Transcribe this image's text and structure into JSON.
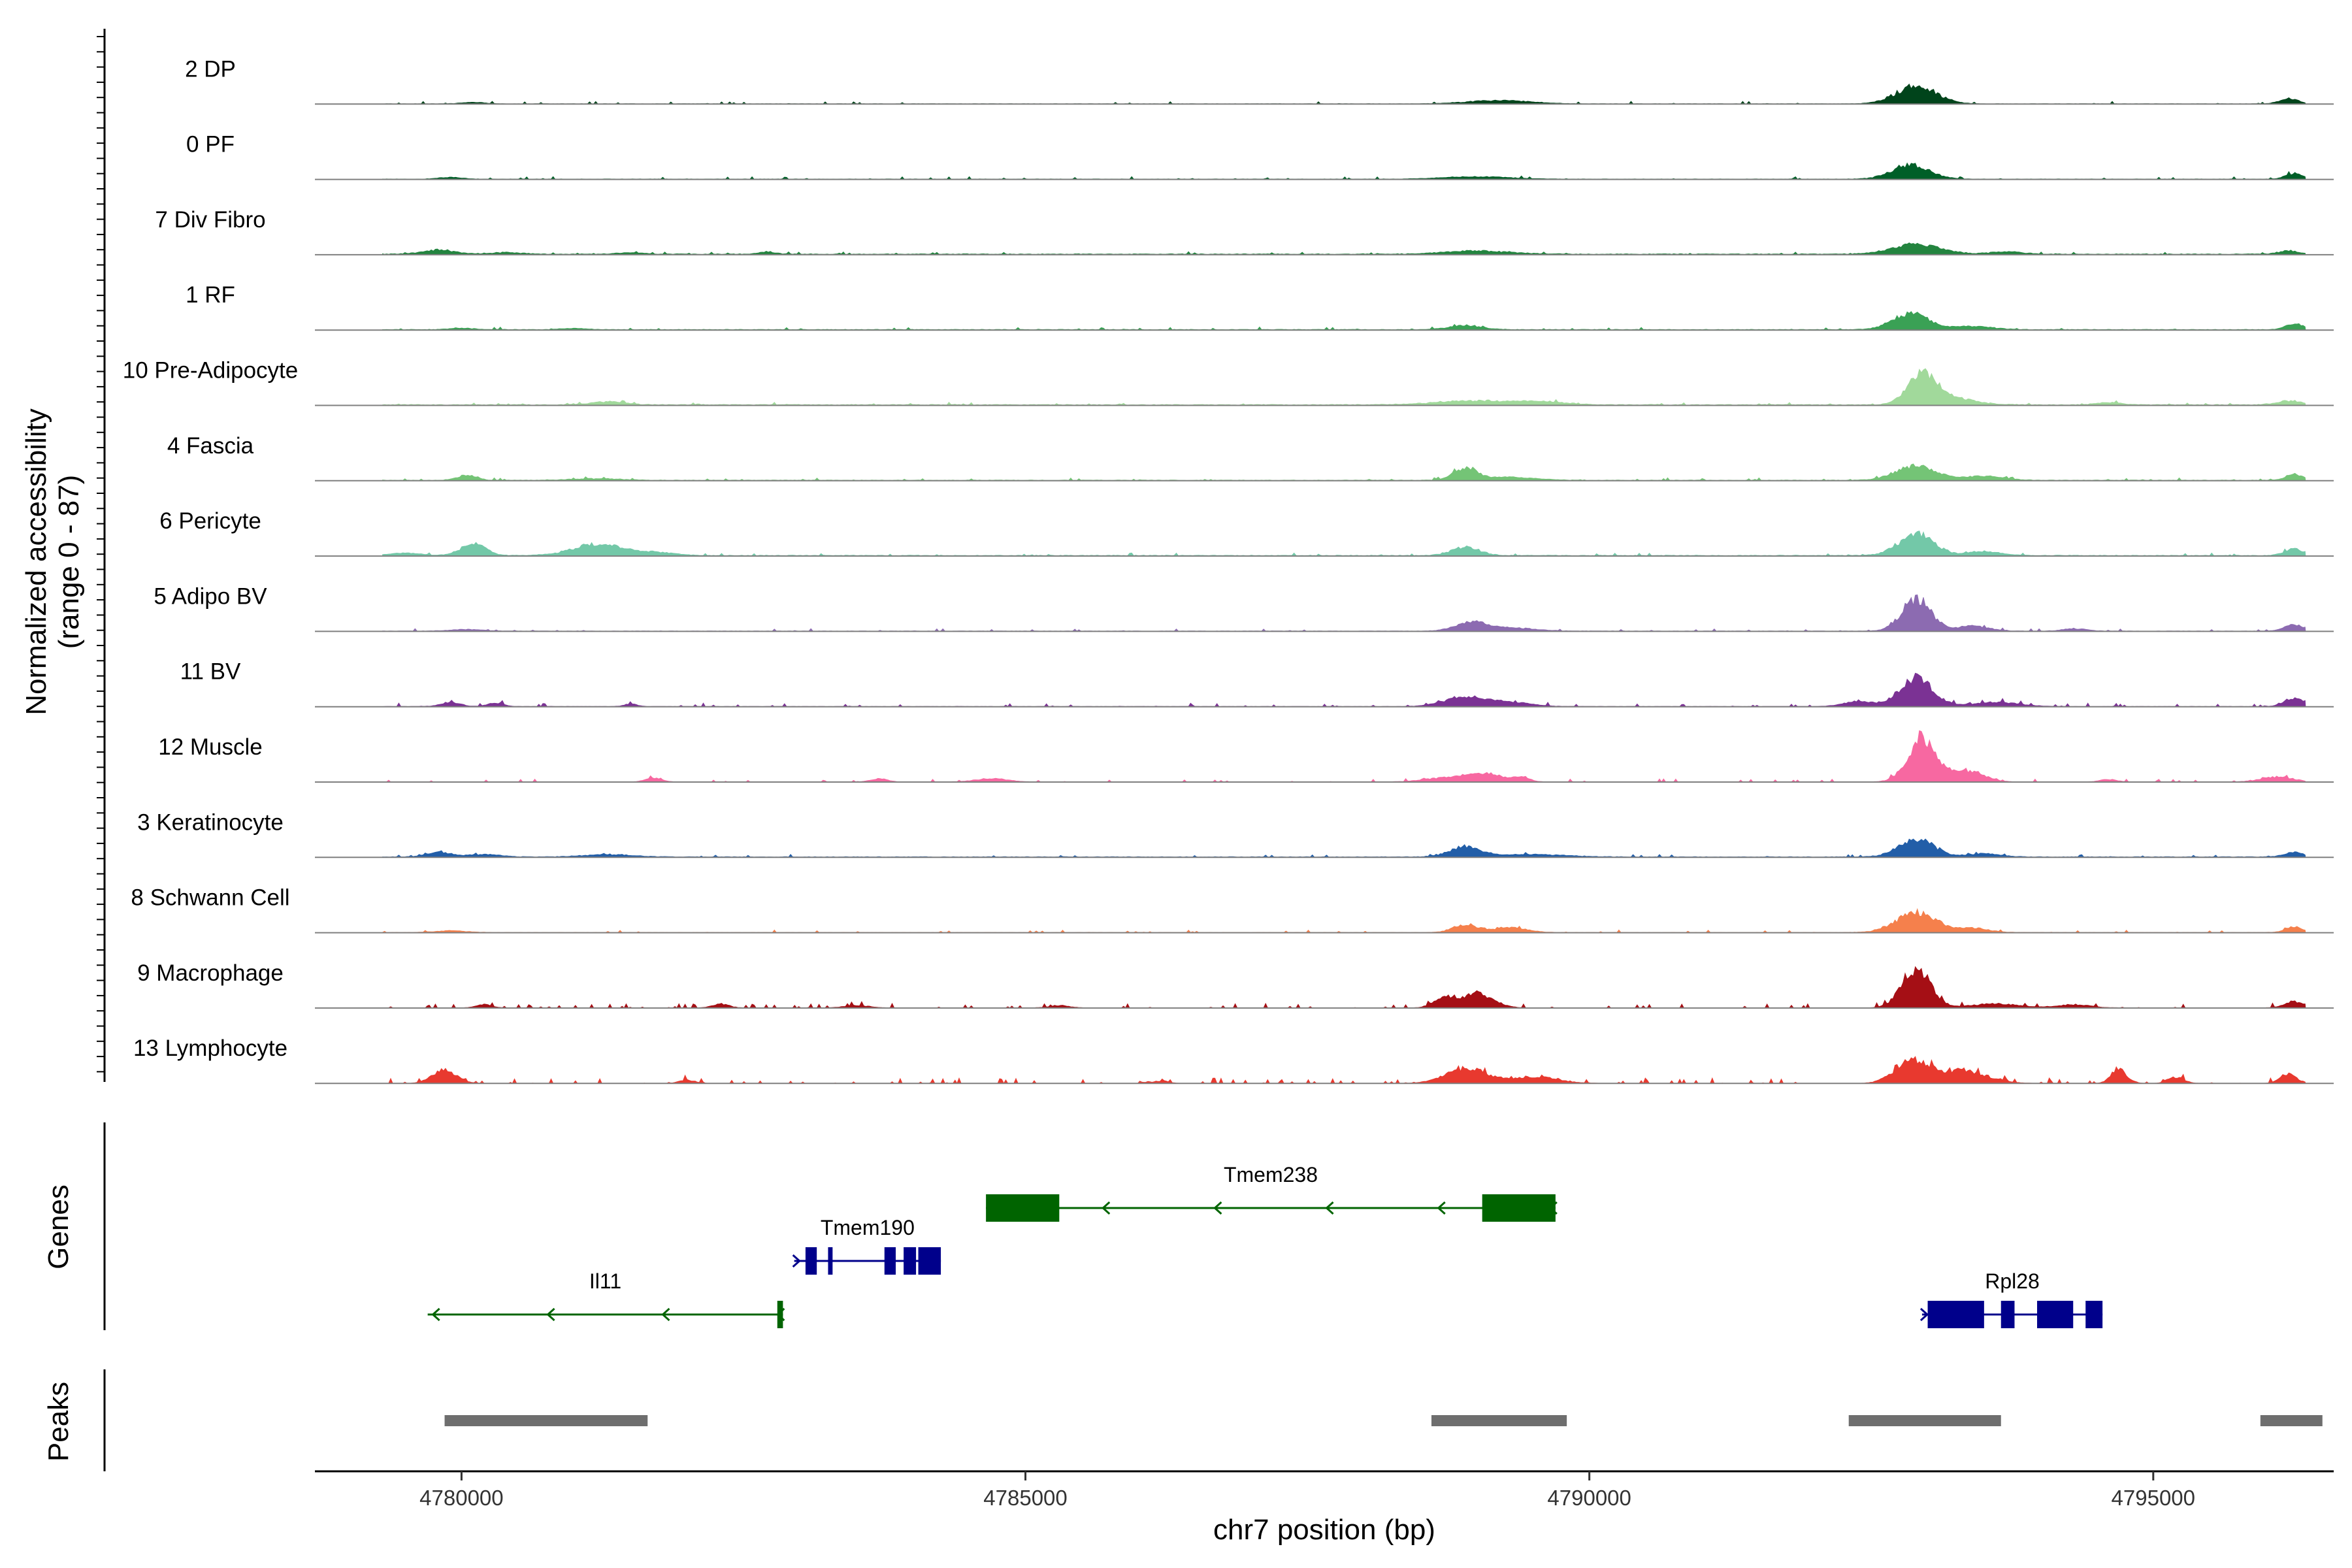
{
  "chart_data": {
    "type": "area",
    "chart_kind": "coverage-track-plot",
    "ylabel": "Normalized accessibility",
    "ylabel_range": "(range 0 - 87)",
    "yrange": [
      0,
      87
    ],
    "xlabel": "chr7 position (bp)",
    "xlim": [
      4778700,
      4796600
    ],
    "x_ticks": [
      {
        "value": 4780000,
        "label": "4780000"
      },
      {
        "value": 4785000,
        "label": "4785000"
      },
      {
        "value": 4790000,
        "label": "4790000"
      },
      {
        "value": 4795000,
        "label": "4795000"
      }
    ],
    "tracks": [
      {
        "name": "2 DP",
        "color": "#00441b",
        "base": 0.3,
        "noise": 1,
        "peaks": [
          [
            4780100,
            150,
            1.8
          ],
          [
            4789200,
            400,
            4
          ],
          [
            4792900,
            250,
            22
          ],
          [
            4796200,
            110,
            7
          ]
        ]
      },
      {
        "name": "0 PF",
        "color": "#005f28",
        "base": 0.4,
        "noise": 1,
        "peaks": [
          [
            4779900,
            150,
            2
          ],
          [
            4789000,
            400,
            3
          ],
          [
            4792850,
            230,
            18
          ],
          [
            4796250,
            110,
            7
          ]
        ]
      },
      {
        "name": "7 Div Fibro",
        "color": "#23843f",
        "base": 0.8,
        "noise": 1,
        "peaks": [
          [
            4779800,
            200,
            5
          ],
          [
            4780400,
            200,
            2
          ],
          [
            4781500,
            150,
            2
          ],
          [
            4782700,
            100,
            3
          ],
          [
            4789000,
            400,
            4
          ],
          [
            4792900,
            300,
            12
          ],
          [
            4793700,
            200,
            3
          ],
          [
            4796200,
            120,
            4
          ]
        ]
      },
      {
        "name": "1 RF",
        "color": "#3aa155",
        "base": 0.6,
        "noise": 1,
        "peaks": [
          [
            4780000,
            150,
            1.8
          ],
          [
            4781000,
            150,
            1.5
          ],
          [
            4788900,
            200,
            5
          ],
          [
            4792850,
            220,
            20
          ],
          [
            4793400,
            250,
            4
          ],
          [
            4796250,
            110,
            7
          ]
        ]
      },
      {
        "name": "10 Pre-Adipocyte",
        "color": "#a1d99b",
        "base": 0.8,
        "noise": 1,
        "peaks": [
          [
            4781300,
            200,
            4
          ],
          [
            4789000,
            500,
            5
          ],
          [
            4789600,
            300,
            3
          ],
          [
            4792950,
            180,
            35
          ],
          [
            4793200,
            300,
            8
          ],
          [
            4794600,
            150,
            3
          ],
          [
            4796200,
            150,
            5
          ]
        ]
      },
      {
        "name": "4 Fascia",
        "color": "#74c476",
        "base": 0.6,
        "noise": 1,
        "peaks": [
          [
            4780050,
            120,
            6
          ],
          [
            4781200,
            300,
            2
          ],
          [
            4788900,
            150,
            14
          ],
          [
            4789300,
            300,
            4
          ],
          [
            4792900,
            250,
            18
          ],
          [
            4793500,
            250,
            5
          ],
          [
            4796250,
            110,
            7
          ]
        ]
      },
      {
        "name": "6 Pericyte",
        "color": "#73c8a8",
        "base": 0.7,
        "noise": 1,
        "peaks": [
          [
            4780100,
            150,
            15
          ],
          [
            4779500,
            200,
            3
          ],
          [
            4781200,
            300,
            14
          ],
          [
            4781700,
            250,
            4
          ],
          [
            4788900,
            180,
            10
          ],
          [
            4792900,
            220,
            26
          ],
          [
            4793500,
            200,
            5
          ],
          [
            4796250,
            120,
            8
          ]
        ]
      },
      {
        "name": "5 Adipo BV",
        "color": "#8c6bb1",
        "base": 0.4,
        "noise": 1,
        "peaks": [
          [
            4780050,
            200,
            2
          ],
          [
            4788950,
            200,
            10
          ],
          [
            4789300,
            300,
            4
          ],
          [
            4792900,
            180,
            40
          ],
          [
            4793400,
            200,
            6
          ],
          [
            4794300,
            150,
            3
          ],
          [
            4796250,
            120,
            8
          ]
        ]
      },
      {
        "name": "11 BV",
        "color": "#7b3294",
        "base": 0.3,
        "noise": 1.4,
        "peaks": [
          [
            4779900,
            120,
            5
          ],
          [
            4780300,
            100,
            4
          ],
          [
            4781500,
            80,
            3
          ],
          [
            4788900,
            250,
            12
          ],
          [
            4789300,
            250,
            5
          ],
          [
            4792900,
            200,
            36
          ],
          [
            4792400,
            200,
            6
          ],
          [
            4793600,
            300,
            5
          ],
          [
            4796250,
            120,
            10
          ]
        ]
      },
      {
        "name": "12 Muscle",
        "color": "#f768a1",
        "base": 0.2,
        "noise": 1.2,
        "peaks": [
          [
            4781700,
            100,
            5
          ],
          [
            4783700,
            100,
            4
          ],
          [
            4784700,
            200,
            4
          ],
          [
            4788800,
            300,
            6
          ],
          [
            4789100,
            200,
            8
          ],
          [
            4789400,
            100,
            6
          ],
          [
            4792950,
            180,
            52
          ],
          [
            4793350,
            200,
            14
          ],
          [
            4794600,
            100,
            3
          ],
          [
            4796100,
            200,
            6
          ]
        ]
      },
      {
        "name": "3 Keratinocyte",
        "color": "#225ea8",
        "base": 0.6,
        "noise": 1,
        "peaks": [
          [
            4779800,
            150,
            6
          ],
          [
            4780200,
            200,
            3
          ],
          [
            4781300,
            300,
            3
          ],
          [
            4788900,
            200,
            12
          ],
          [
            4789500,
            400,
            3
          ],
          [
            4792900,
            220,
            22
          ],
          [
            4793500,
            200,
            4
          ],
          [
            4796250,
            120,
            6
          ]
        ]
      },
      {
        "name": "8 Schwann Cell",
        "color": "#f5804c",
        "base": 0.3,
        "noise": 1,
        "peaks": [
          [
            4779900,
            200,
            2
          ],
          [
            4788900,
            150,
            10
          ],
          [
            4789300,
            200,
            6
          ],
          [
            4792900,
            250,
            24
          ],
          [
            4793400,
            200,
            5
          ],
          [
            4796250,
            110,
            7
          ]
        ]
      },
      {
        "name": "9 Macrophage",
        "color": "#a50f15",
        "base": 0.2,
        "noise": 1.8,
        "peaks": [
          [
            4780200,
            100,
            4
          ],
          [
            4782300,
            100,
            5
          ],
          [
            4783500,
            150,
            3
          ],
          [
            4785300,
            120,
            3
          ],
          [
            4788700,
            120,
            12
          ],
          [
            4789000,
            200,
            18
          ],
          [
            4792900,
            180,
            46
          ],
          [
            4793600,
            300,
            5
          ],
          [
            4794300,
            200,
            4
          ],
          [
            4796250,
            120,
            8
          ]
        ]
      },
      {
        "name": "13 Lymphocyte",
        "color": "#e8392f",
        "base": 0.0,
        "noise": 2.2,
        "peaks": [
          [
            4779850,
            150,
            16
          ],
          [
            4782000,
            100,
            4
          ],
          [
            4786200,
            100,
            3
          ],
          [
            4788900,
            250,
            18
          ],
          [
            4789500,
            300,
            8
          ],
          [
            4792850,
            200,
            28
          ],
          [
            4793300,
            300,
            16
          ],
          [
            4794700,
            100,
            16
          ],
          [
            4795200,
            100,
            8
          ],
          [
            4796200,
            100,
            12
          ]
        ]
      }
    ],
    "genes": [
      {
        "name": "Il11",
        "start": 4779700,
        "end": 4782850,
        "strand": "-",
        "color": "#006400",
        "row": 2,
        "exons": [
          [
            4782800,
            4782850
          ]
        ]
      },
      {
        "name": "Tmem190",
        "start": 4782950,
        "end": 4784250,
        "strand": "+",
        "color": "#00008b",
        "row": 1,
        "exons": [
          [
            4783050,
            4783150
          ],
          [
            4783250,
            4783290
          ],
          [
            4783750,
            4783850
          ],
          [
            4783920,
            4784030
          ],
          [
            4784050,
            4784250
          ]
        ]
      },
      {
        "name": "Tmem238",
        "start": 4784650,
        "end": 4789700,
        "strand": "-",
        "color": "#006400",
        "row": 0,
        "exons": [
          [
            4784650,
            4785300
          ],
          [
            4789050,
            4789700
          ]
        ]
      },
      {
        "name": "Rpl28",
        "start": 4792950,
        "end": 4794550,
        "strand": "+",
        "color": "#00008b",
        "row": 2,
        "exons": [
          [
            4793000,
            4793500
          ],
          [
            4793650,
            4793770
          ],
          [
            4793970,
            4794290
          ],
          [
            4794400,
            4794550
          ]
        ]
      }
    ],
    "gene_track_label": "Genes",
    "peaks": [
      [
        4779850,
        4781650
      ],
      [
        4788600,
        4789800
      ],
      [
        4792300,
        4793650
      ],
      [
        4795950,
        4796500
      ]
    ],
    "peak_track_label": "Peaks"
  },
  "colors": {
    "peak_bar": "#6e6e6e",
    "baseline": "#7f7f7f",
    "axis": "#000000"
  }
}
